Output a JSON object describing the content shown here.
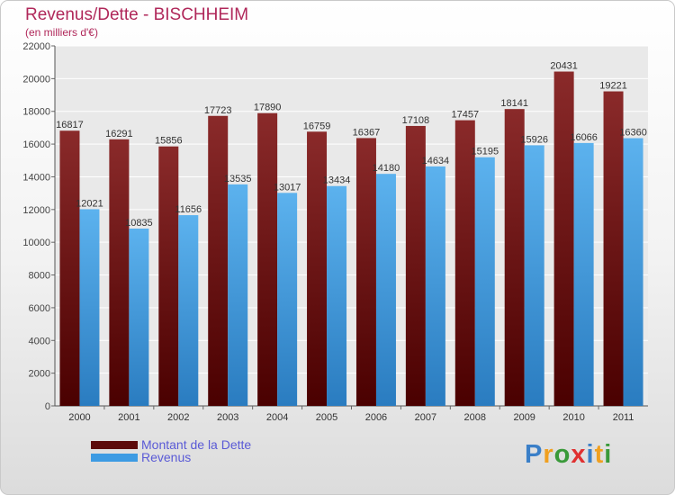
{
  "chart_data": {
    "type": "bar",
    "title": "Revenus/Dette - BISCHHEIM",
    "subtitle": "(en milliers d'€)",
    "categories": [
      "2000",
      "2001",
      "2002",
      "2003",
      "2004",
      "2005",
      "2006",
      "2007",
      "2008",
      "2009",
      "2010",
      "2011"
    ],
    "series": [
      {
        "name": "Montant de la Dette",
        "color": "#7a1c1c",
        "values": [
          16817,
          16291,
          15856,
          17723,
          17890,
          16759,
          16367,
          17108,
          17457,
          18141,
          20431,
          19221
        ]
      },
      {
        "name": "Revenus",
        "color": "#4ca3e6",
        "values": [
          12021,
          10835,
          11656,
          13535,
          13017,
          13434,
          14180,
          14634,
          15195,
          15926,
          16066,
          16360
        ]
      }
    ],
    "ylim": [
      0,
      22000
    ],
    "yticks": [
      0,
      2000,
      4000,
      6000,
      8000,
      10000,
      12000,
      14000,
      16000,
      18000,
      20000,
      22000
    ],
    "grid": true,
    "legend_position": "bottom-left"
  },
  "legend": {
    "debt_label": "Montant de la Dette",
    "revenue_label": "Revenus",
    "debt_color": "#5c0a0a",
    "revenue_color": "#3d9be3"
  },
  "logo": {
    "letters": [
      "P",
      "r",
      "o",
      "x",
      "i",
      "t",
      "i"
    ],
    "colors": [
      "#3a7fc8",
      "#f0a020",
      "#3a9a3a",
      "#e03030",
      "#3a7fc8",
      "#f0a020",
      "#3a9a3a"
    ]
  }
}
